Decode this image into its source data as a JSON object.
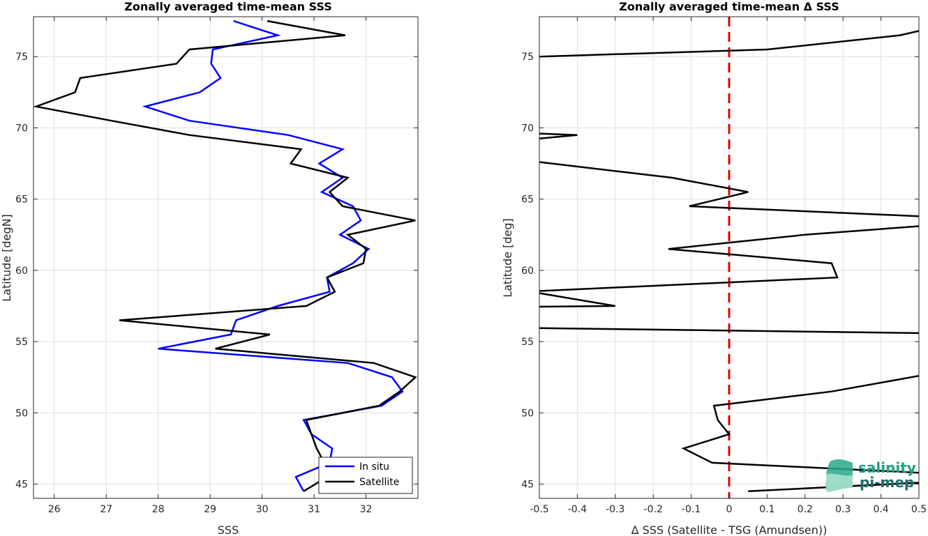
{
  "chart_data": [
    {
      "type": "line",
      "title": "Zonally averaged time-mean SSS",
      "xlabel": "SSS",
      "ylabel": "Latitude [degN]",
      "xlim": [
        25.6,
        33.0
      ],
      "ylim": [
        44,
        77.8
      ],
      "xticks": [
        "26",
        "27",
        "28",
        "29",
        "30",
        "31",
        "32"
      ],
      "yticks": [
        "45",
        "50",
        "55",
        "60",
        "65",
        "70",
        "75"
      ],
      "grid": true,
      "legend": {
        "placement": "bottom-right"
      },
      "series": [
        {
          "name": "In situ",
          "color": "#0000ff",
          "points": [
            [
              29.45,
              77.5
            ],
            [
              30.3,
              76.5
            ],
            [
              29.05,
              75.5
            ],
            [
              29.02,
              74.5
            ],
            [
              29.2,
              73.5
            ],
            [
              28.8,
              72.5
            ],
            [
              27.75,
              71.5
            ],
            [
              28.6,
              70.5
            ],
            [
              30.5,
              69.5
            ],
            [
              31.55,
              68.5
            ],
            [
              31.1,
              67.5
            ],
            [
              31.55,
              66.5
            ],
            [
              31.15,
              65.5
            ],
            [
              31.75,
              64.5
            ],
            [
              31.9,
              63.5
            ],
            [
              31.5,
              62.5
            ],
            [
              32.05,
              61.5
            ],
            [
              31.75,
              60.5
            ],
            [
              31.25,
              59.5
            ],
            [
              31.3,
              58.5
            ],
            [
              30.3,
              57.5
            ],
            [
              29.5,
              56.5
            ],
            [
              29.4,
              55.5
            ],
            [
              28.0,
              54.5
            ],
            [
              31.65,
              53.5
            ],
            [
              32.5,
              52.5
            ],
            [
              32.7,
              51.5
            ],
            [
              32.3,
              50.5
            ],
            [
              30.8,
              49.5
            ],
            [
              30.95,
              48.5
            ],
            [
              31.35,
              47.5
            ],
            [
              31.3,
              46.5
            ],
            [
              30.65,
              45.5
            ],
            [
              30.8,
              44.5
            ]
          ]
        },
        {
          "name": "Satellite",
          "color": "#000000",
          "points": [
            [
              30.1,
              77.5
            ],
            [
              31.6,
              76.5
            ],
            [
              28.6,
              75.5
            ],
            [
              28.35,
              74.5
            ],
            [
              26.5,
              73.5
            ],
            [
              26.4,
              72.5
            ],
            [
              25.65,
              71.5
            ],
            [
              27.1,
              70.5
            ],
            [
              28.6,
              69.5
            ],
            [
              30.75,
              68.5
            ],
            [
              30.55,
              67.5
            ],
            [
              31.65,
              66.5
            ],
            [
              31.3,
              65.5
            ],
            [
              31.55,
              64.5
            ],
            [
              32.95,
              63.5
            ],
            [
              31.65,
              62.5
            ],
            [
              32.0,
              61.5
            ],
            [
              31.95,
              60.5
            ],
            [
              31.25,
              59.5
            ],
            [
              31.4,
              58.5
            ],
            [
              30.85,
              57.5
            ],
            [
              27.25,
              56.5
            ],
            [
              30.15,
              55.5
            ],
            [
              29.1,
              54.5
            ],
            [
              32.15,
              53.5
            ],
            [
              32.95,
              52.5
            ],
            [
              32.65,
              51.5
            ],
            [
              32.25,
              50.5
            ],
            [
              30.85,
              49.5
            ],
            [
              30.95,
              48.5
            ],
            [
              31.05,
              47.5
            ],
            [
              31.2,
              46.5
            ],
            [
              31.25,
              45.5
            ],
            [
              30.8,
              44.5
            ]
          ]
        }
      ]
    },
    {
      "type": "line",
      "title": "Zonally averaged time-mean Δ SSS",
      "xlabel": "Δ SSS (Satellite - TSG (Amundsen))",
      "ylabel": "Latitude [deg]",
      "xlim": [
        -0.5,
        0.5
      ],
      "ylim": [
        44,
        77.8
      ],
      "xticks": [
        "-0.5",
        "-0.4",
        "-0.3",
        "-0.2",
        "-0.1",
        "0",
        "0.1",
        "0.2",
        "0.3",
        "0.4",
        "0.5"
      ],
      "yticks": [
        "45",
        "50",
        "55",
        "60",
        "65",
        "70",
        "75"
      ],
      "grid": true,
      "reference_line": {
        "x": 0,
        "color": "#e00000",
        "style": "dashed"
      },
      "series": [
        {
          "color": "#000000",
          "segments": [
            [
              [
                0.5,
                76.8
              ],
              [
                0.45,
                76.5
              ],
              [
                0.1,
                75.5
              ],
              [
                -0.5,
                75.0
              ]
            ],
            [
              [
                -0.5,
                69.6
              ],
              [
                -0.4,
                69.5
              ],
              [
                -0.5,
                69.25
              ]
            ],
            [
              [
                -0.5,
                67.6
              ],
              [
                -0.15,
                66.5
              ],
              [
                0.05,
                65.5
              ],
              [
                -0.105,
                64.5
              ],
              [
                0.5,
                63.8
              ]
            ],
            [
              [
                0.5,
                63.1
              ],
              [
                0.2,
                62.5
              ],
              [
                -0.16,
                61.5
              ],
              [
                0.27,
                60.5
              ],
              [
                0.285,
                59.5
              ],
              [
                -0.5,
                58.55
              ]
            ],
            [
              [
                -0.5,
                58.4
              ],
              [
                -0.3,
                57.5
              ],
              [
                -0.5,
                57.45
              ]
            ],
            [
              [
                -0.5,
                55.95
              ],
              [
                0.5,
                55.6
              ]
            ],
            [
              [
                0.5,
                52.6
              ],
              [
                0.48,
                52.5
              ],
              [
                0.27,
                51.5
              ],
              [
                -0.04,
                50.5
              ],
              [
                -0.03,
                49.5
              ],
              [
                0.0,
                48.5
              ],
              [
                -0.12,
                47.5
              ],
              [
                -0.045,
                46.5
              ],
              [
                0.5,
                45.8
              ]
            ],
            [
              [
                0.5,
                45.1
              ],
              [
                0.05,
                44.5
              ]
            ]
          ]
        }
      ]
    }
  ],
  "logo": {
    "line1": "salinity",
    "line2": "pi-mep"
  }
}
